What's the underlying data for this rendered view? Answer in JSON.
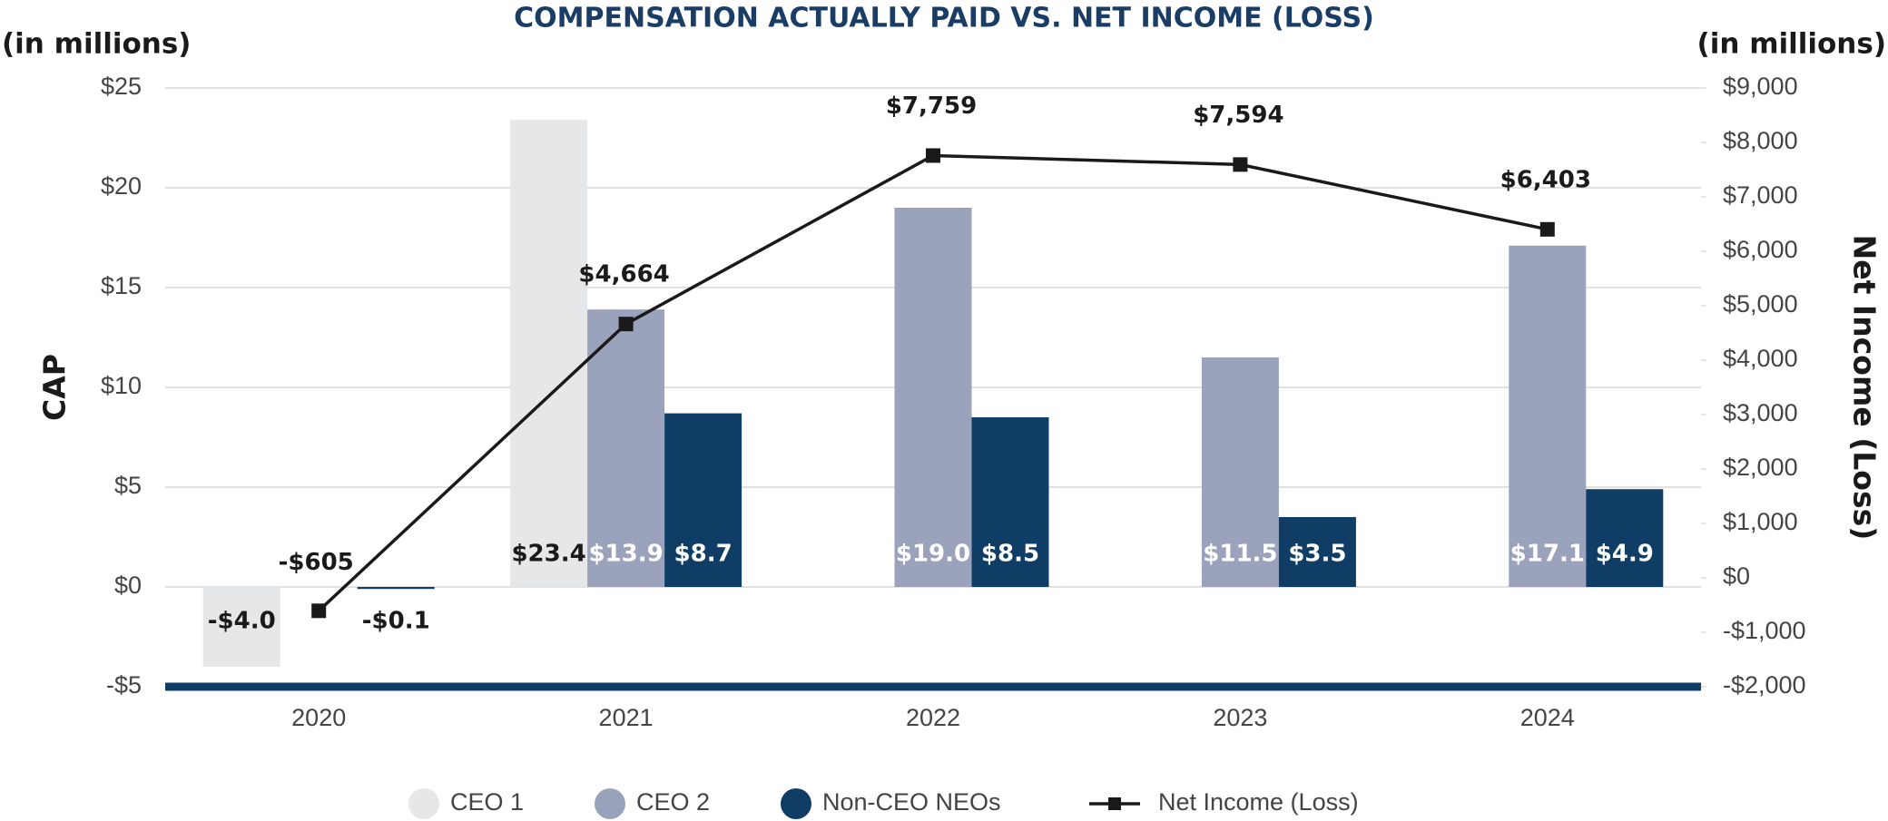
{
  "chart_data": {
    "type": "bar",
    "title": "COMPENSATION ACTUALLY PAID VS. NET INCOME (LOSS)",
    "y_unit_label": "(in millions)",
    "y2_unit_label": "(in millions)",
    "y_label": "CAP",
    "y2_label": "Net Income (Loss)",
    "categories": [
      "2020",
      "2021",
      "2022",
      "2023",
      "2024"
    ],
    "series": [
      {
        "name": "CEO 1",
        "color": "#e6e7e9",
        "label_color": "#1a1a1a",
        "values": [
          -4.0,
          23.4,
          null,
          null,
          null
        ],
        "value_labels": [
          "-$4.0",
          "$23.4",
          null,
          null,
          null
        ]
      },
      {
        "name": "CEO 2",
        "color": "#9ba2bb",
        "label_color": "#ffffff",
        "values": [
          null,
          13.9,
          19.0,
          11.5,
          17.1
        ],
        "value_labels": [
          null,
          "$13.9",
          "$19.0",
          "$11.5",
          "$17.1"
        ]
      },
      {
        "name": "Non-CEO NEOs",
        "color": "#0f3d66",
        "label_color": "#ffffff",
        "values": [
          -0.1,
          8.7,
          8.5,
          3.5,
          4.9
        ],
        "value_labels": [
          "-$0.1",
          "$8.7",
          "$8.5",
          "$3.5",
          "$4.9"
        ]
      },
      {
        "name": "Net Income (Loss)",
        "type": "line",
        "axis": "y2",
        "color": "#1a1a1a",
        "values": [
          -605,
          4664,
          7759,
          7594,
          6403
        ],
        "value_labels": [
          "-$605",
          "$4,664",
          "$7,759",
          "$7,594",
          "$6,403"
        ]
      }
    ],
    "ylim": [
      -5,
      25
    ],
    "yticks": [
      {
        "value": -5,
        "label": "-$5"
      },
      {
        "value": 0,
        "label": "$0"
      },
      {
        "value": 5,
        "label": "$5"
      },
      {
        "value": 10,
        "label": "$10"
      },
      {
        "value": 15,
        "label": "$15"
      },
      {
        "value": 20,
        "label": "$20"
      },
      {
        "value": 25,
        "label": "$25"
      }
    ],
    "y2lim": [
      -2000,
      9000
    ],
    "y2ticks": [
      {
        "value": -2000,
        "label": "-$2,000"
      },
      {
        "value": -1000,
        "label": "-$1,000"
      },
      {
        "value": 0,
        "label": "$0"
      },
      {
        "value": 1000,
        "label": "$1,000"
      },
      {
        "value": 2000,
        "label": "$2,000"
      },
      {
        "value": 3000,
        "label": "$3,000"
      },
      {
        "value": 4000,
        "label": "$4,000"
      },
      {
        "value": 5000,
        "label": "$5,000"
      },
      {
        "value": 6000,
        "label": "$6,000"
      },
      {
        "value": 7000,
        "label": "$7,000"
      },
      {
        "value": 8000,
        "label": "$8,000"
      },
      {
        "value": 9000,
        "label": "$9,000"
      }
    ],
    "grid": true,
    "legend": "bottom"
  }
}
